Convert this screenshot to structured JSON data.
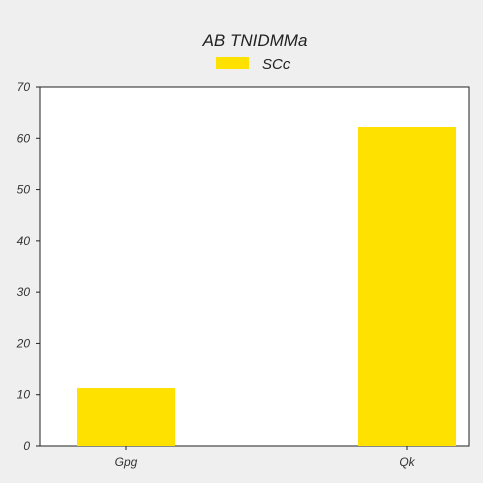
{
  "chart_data": {
    "type": "bar",
    "title": "AB TNIDMMa",
    "categories": [
      "Gpg",
      "Qk"
    ],
    "series": [
      {
        "name": "SCc",
        "values": [
          11.3,
          62.2
        ]
      }
    ],
    "xlabel": "",
    "ylabel": "",
    "ylim": [
      0,
      70
    ],
    "yticks": [
      "0",
      "10",
      "20",
      "30",
      "40",
      "50",
      "60",
      "70"
    ],
    "grid": false,
    "legend": "top-center",
    "colors": {
      "bar": "#ffe100",
      "background": "#efefef",
      "plot_area": "#ffffff",
      "axis": "#222222"
    }
  }
}
